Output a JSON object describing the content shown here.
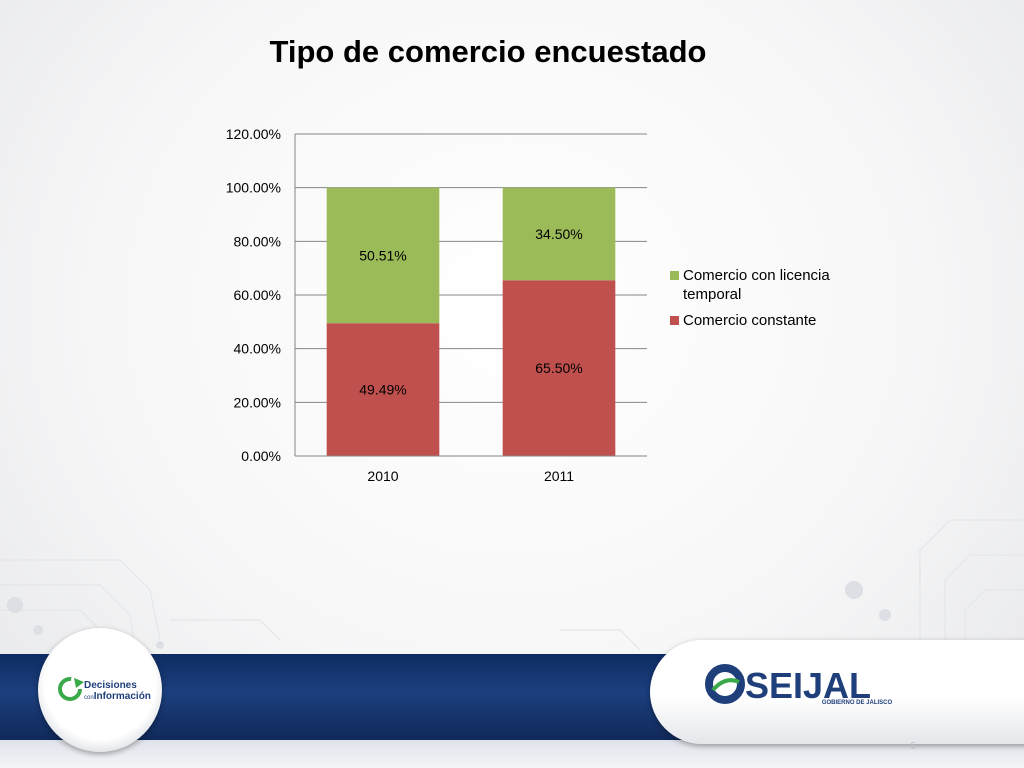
{
  "slide": {
    "title": "Tipo de comercio encuestado",
    "logos": {
      "left_line1": "Decisiones",
      "left_line2_small": "con",
      "left_line2": "Información",
      "right_main": "SEIJAL",
      "right_sub": "GOBIERNO DE JALISCO"
    },
    "page_number": "6"
  },
  "chart_data": {
    "type": "bar",
    "stacked": true,
    "categories": [
      "2010",
      "2011"
    ],
    "series": [
      {
        "name": "Comercio constante",
        "values": [
          49.49,
          65.5
        ],
        "color": "#c0504d"
      },
      {
        "name": "Comercio con licencia temporal",
        "values": [
          50.51,
          34.5
        ],
        "color": "#9bbb59"
      }
    ],
    "data_labels": {
      "Comercio constante": [
        "49.49%",
        "65.50%"
      ],
      "Comercio con licencia temporal": [
        "50.51%",
        "34.50%"
      ]
    },
    "y_ticks": [
      "0.00%",
      "20.00%",
      "40.00%",
      "60.00%",
      "80.00%",
      "100.00%",
      "120.00%"
    ],
    "ylim": [
      0,
      120
    ],
    "grid": true,
    "legend_position": "right",
    "legend": [
      "Comercio con licencia temporal",
      "Comercio constante"
    ],
    "title": "",
    "xlabel": "",
    "ylabel": ""
  }
}
